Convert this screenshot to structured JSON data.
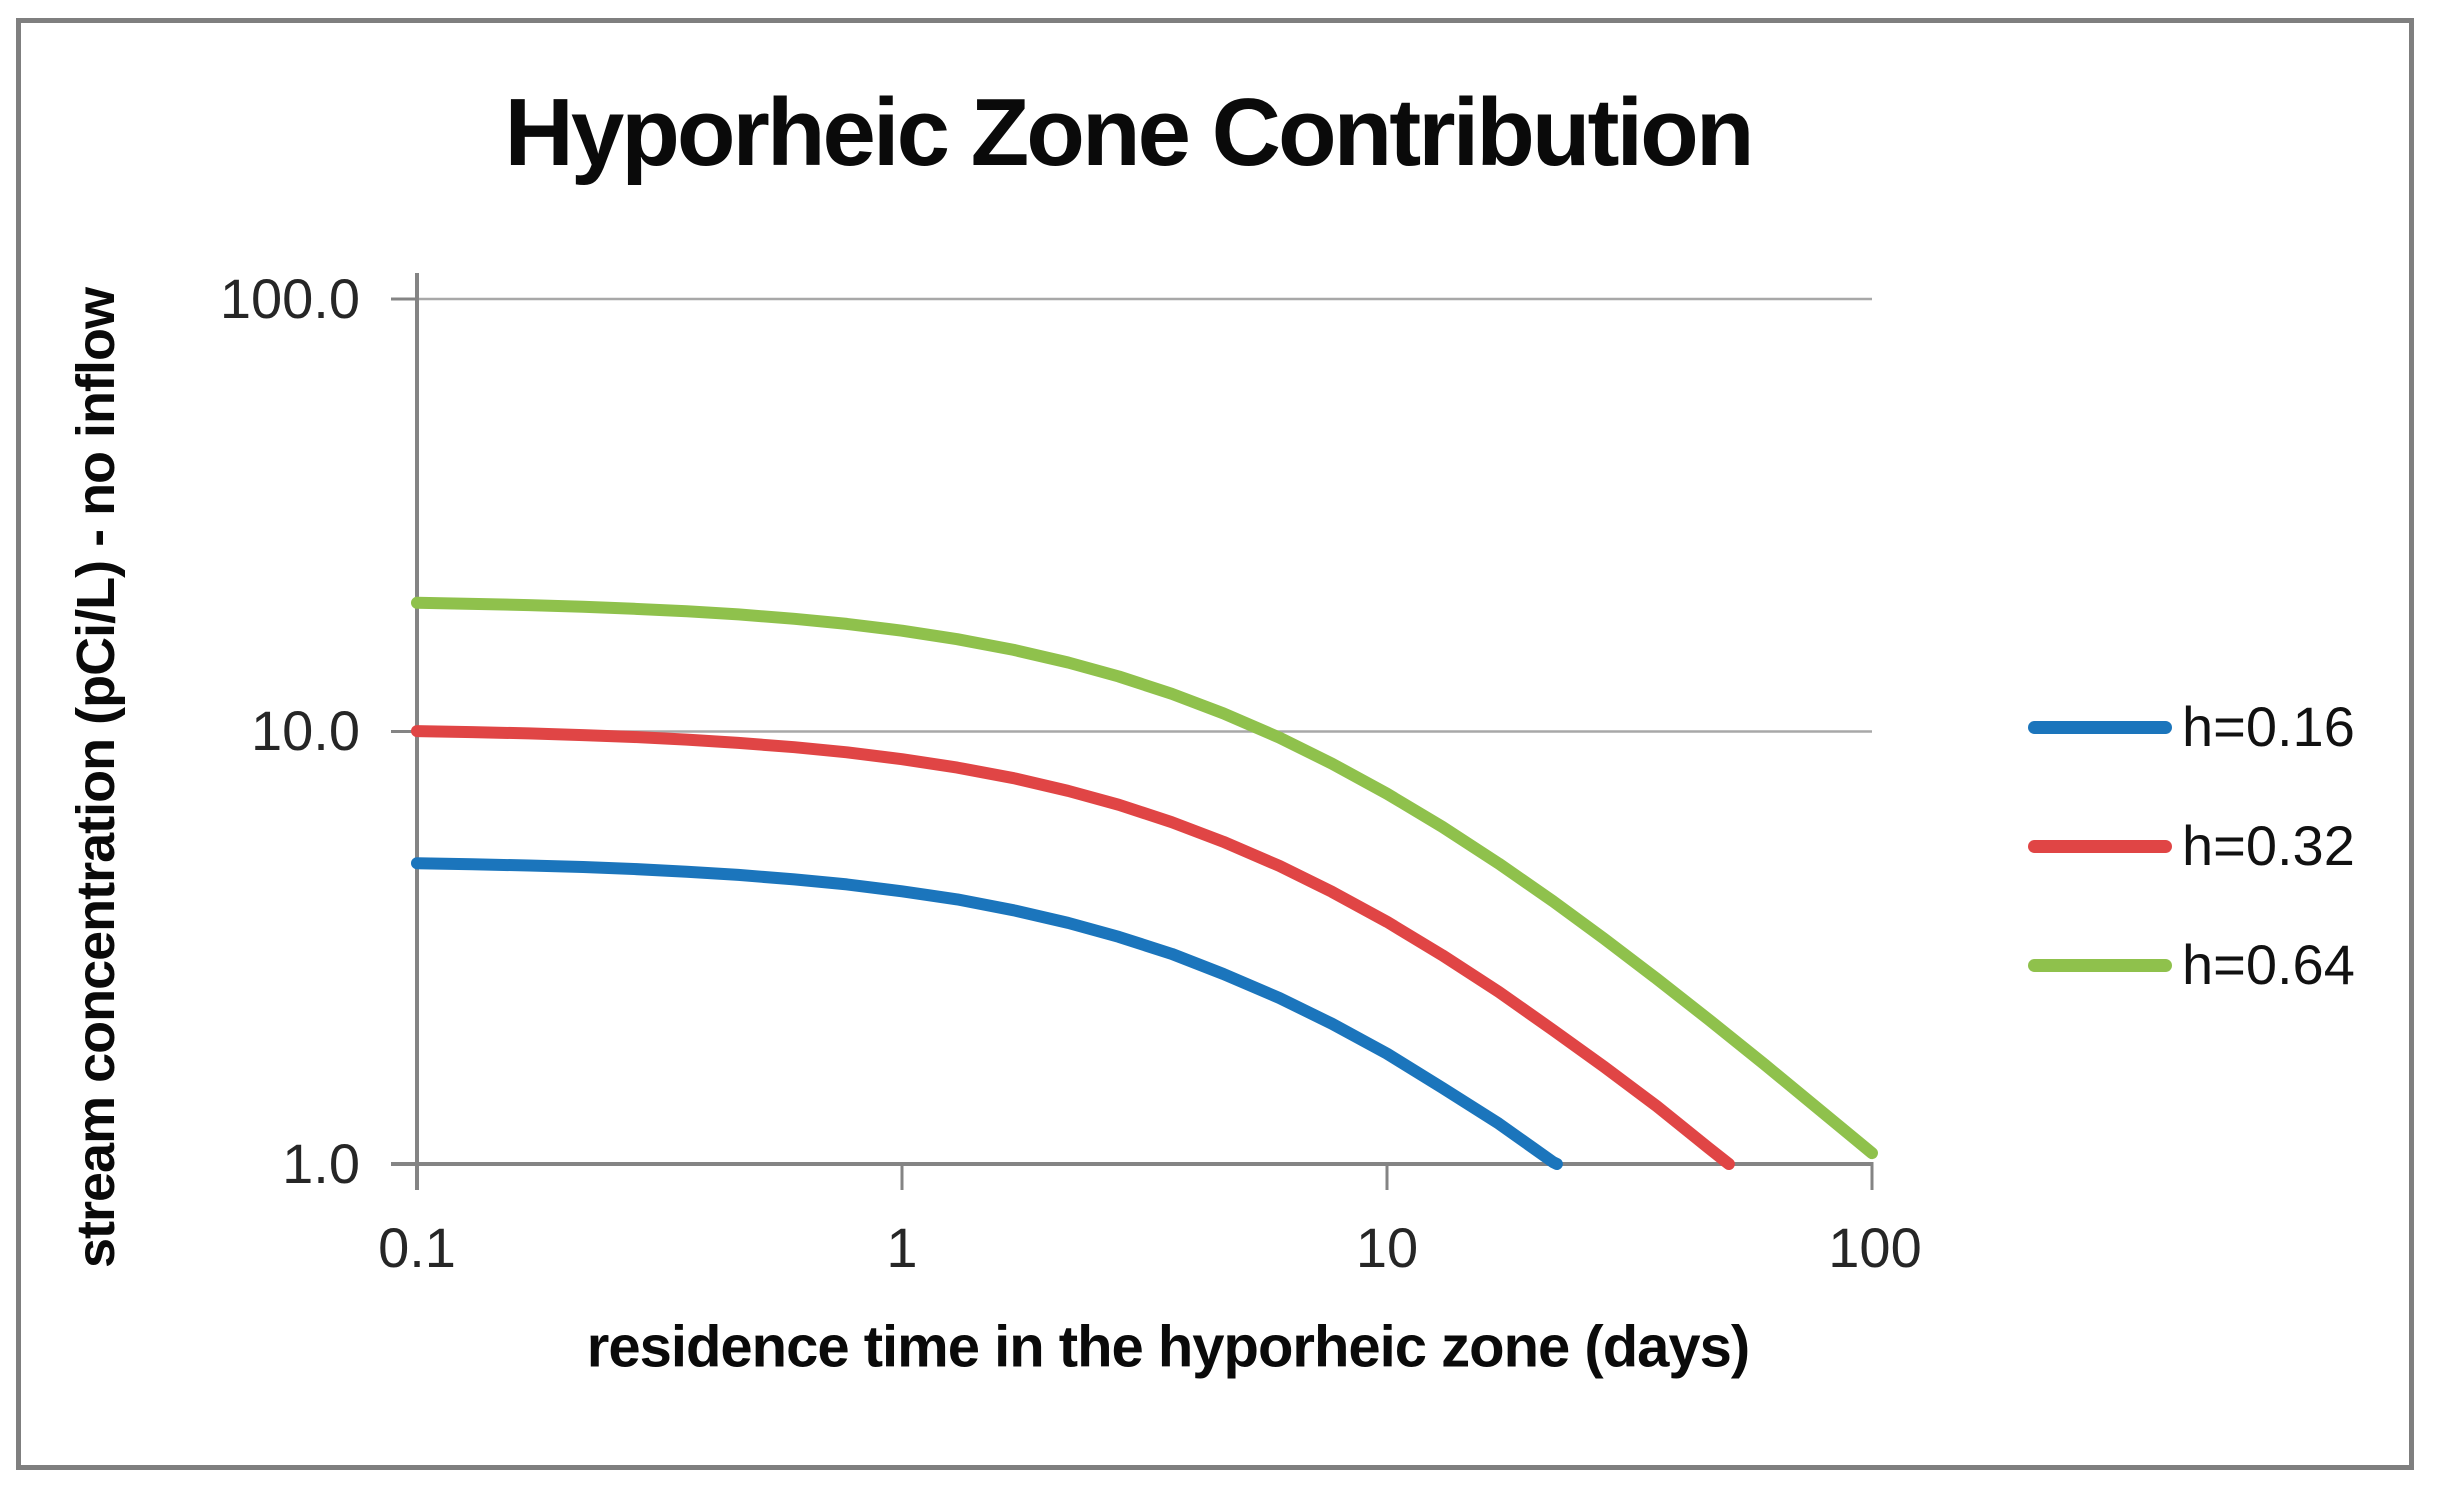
{
  "chart_data": {
    "type": "line",
    "title": "Hyporheic Zone Contribution",
    "xlabel": "residence time in the hyporheic zone (days)",
    "ylabel": "stream concentration (pCi/L) - no inflow",
    "x_scale": "log",
    "y_scale": "log",
    "xlim": [
      0.1,
      100
    ],
    "ylim": [
      1.0,
      100.0
    ],
    "x_tick_values": [
      0.1,
      1,
      10,
      100
    ],
    "x_tick_labels": [
      "0.1",
      "1",
      "10",
      "100"
    ],
    "y_tick_values": [
      100,
      10,
      1
    ],
    "y_tick_labels": [
      "100.0",
      "10.0",
      "1.0"
    ],
    "grid": "horizontal-major-only",
    "legend_position": "right-outside",
    "series": [
      {
        "name": "h=0.16",
        "color": "#1b75bc",
        "points": [
          [
            0.1,
            4.96
          ],
          [
            0.13,
            4.93
          ],
          [
            0.17,
            4.9
          ],
          [
            0.22,
            4.86
          ],
          [
            0.28,
            4.81
          ],
          [
            0.36,
            4.74
          ],
          [
            0.46,
            4.66
          ],
          [
            0.6,
            4.55
          ],
          [
            0.77,
            4.43
          ],
          [
            1,
            4.27
          ],
          [
            1.3,
            4.09
          ],
          [
            1.7,
            3.86
          ],
          [
            2.2,
            3.61
          ],
          [
            2.8,
            3.35
          ],
          [
            3.6,
            3.06
          ],
          [
            4.6,
            2.75
          ],
          [
            6,
            2.42
          ],
          [
            7.7,
            2.11
          ],
          [
            10,
            1.8
          ],
          [
            13,
            1.5
          ],
          [
            17,
            1.24
          ],
          [
            22,
            1.01
          ],
          [
            22.4,
            1.0
          ]
        ]
      },
      {
        "name": "h=0.32",
        "color": "#e04545",
        "points": [
          [
            0.1,
            10.02
          ],
          [
            0.13,
            9.97
          ],
          [
            0.17,
            9.9
          ],
          [
            0.22,
            9.81
          ],
          [
            0.28,
            9.71
          ],
          [
            0.36,
            9.58
          ],
          [
            0.46,
            9.41
          ],
          [
            0.6,
            9.2
          ],
          [
            0.77,
            8.95
          ],
          [
            1,
            8.63
          ],
          [
            1.3,
            8.25
          ],
          [
            1.7,
            7.8
          ],
          [
            2.2,
            7.29
          ],
          [
            2.8,
            6.77
          ],
          [
            3.6,
            6.17
          ],
          [
            4.6,
            5.56
          ],
          [
            6,
            4.89
          ],
          [
            7.7,
            4.26
          ],
          [
            10,
            3.63
          ],
          [
            13,
            3.04
          ],
          [
            17,
            2.5
          ],
          [
            22,
            2.04
          ],
          [
            28,
            1.68
          ],
          [
            36,
            1.36
          ],
          [
            46,
            1.09
          ],
          [
            50.7,
            1.0
          ]
        ]
      },
      {
        "name": "h=0.64",
        "color": "#8fc14c",
        "points": [
          [
            0.1,
            19.84
          ],
          [
            0.13,
            19.73
          ],
          [
            0.17,
            19.6
          ],
          [
            0.22,
            19.43
          ],
          [
            0.28,
            19.22
          ],
          [
            0.36,
            18.96
          ],
          [
            0.46,
            18.65
          ],
          [
            0.6,
            18.22
          ],
          [
            0.77,
            17.73
          ],
          [
            1,
            17.1
          ],
          [
            1.3,
            16.35
          ],
          [
            1.7,
            15.44
          ],
          [
            2.2,
            14.44
          ],
          [
            2.8,
            13.4
          ],
          [
            3.6,
            12.22
          ],
          [
            4.6,
            11.01
          ],
          [
            6,
            9.68
          ],
          [
            7.7,
            8.43
          ],
          [
            10,
            7.18
          ],
          [
            13,
            6.02
          ],
          [
            17,
            4.95
          ],
          [
            22,
            4.05
          ],
          [
            28,
            3.32
          ],
          [
            36,
            2.68
          ],
          [
            46,
            2.16
          ],
          [
            60,
            1.7
          ],
          [
            77,
            1.35
          ],
          [
            100,
            1.06
          ]
        ]
      }
    ]
  },
  "colors": {
    "axis": "#848484",
    "tick": "#848484",
    "gridline": "#a8a8a8",
    "border": "#7f7f7f",
    "title_text": "#0a0a0a",
    "tick_text": "#262626"
  }
}
